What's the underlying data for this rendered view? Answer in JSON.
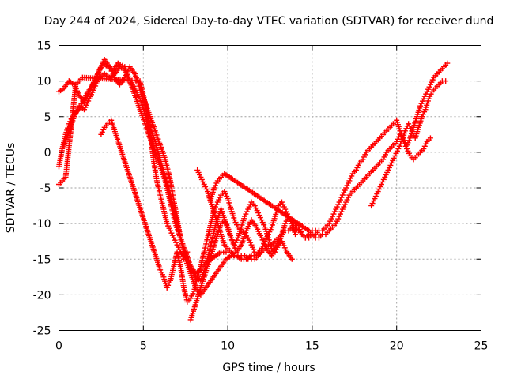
{
  "chart_data": {
    "type": "scatter",
    "title": "Day 244 of 2024, Sidereal Day-to-day VTEC variation (SDTVAR) for receiver dund",
    "xlabel": "GPS time / hours",
    "ylabel": "SDTVAR / TECUs",
    "xlim": [
      0,
      25
    ],
    "ylim": [
      -25,
      15
    ],
    "x_ticks": [
      0,
      5,
      10,
      15,
      20,
      25
    ],
    "y_ticks": [
      -25,
      -20,
      -15,
      -10,
      -5,
      0,
      5,
      10,
      15
    ],
    "grid": true,
    "marker": "plus",
    "color": "#ff0000",
    "series": [
      {
        "x": [
          0.0,
          0.2,
          0.4,
          0.6,
          0.8,
          1.0,
          1.3,
          1.6,
          2.0,
          2.3,
          2.6,
          2.9,
          3.2,
          3.5,
          3.9,
          4.2,
          4.5,
          4.8,
          5.1,
          5.4,
          5.7,
          6.0,
          6.3,
          6.6,
          6.9,
          7.2,
          7.5,
          7.8,
          8.1,
          8.4,
          8.7,
          9.0,
          9.3,
          9.6,
          9.9
        ],
        "y": [
          -2.0,
          0.5,
          2.5,
          4.0,
          5.0,
          5.5,
          6.5,
          8.0,
          9.5,
          11.0,
          12.5,
          12.0,
          11.5,
          12.5,
          12.0,
          10.0,
          8.0,
          6.0,
          4.0,
          2.0,
          0.0,
          -2.0,
          -4.0,
          -7.0,
          -10.0,
          -12.0,
          -14.0,
          -16.0,
          -17.0,
          -16.5,
          -15.5,
          -15.0,
          -14.5,
          -14.0,
          -14.0
        ]
      },
      {
        "x": [
          0.0,
          0.3,
          0.6,
          0.9,
          1.2,
          1.5,
          1.8,
          2.1,
          2.4,
          2.7,
          3.0,
          3.3,
          3.6,
          3.9,
          4.2,
          4.5,
          4.8,
          5.1,
          5.4,
          5.7,
          6.0,
          6.3,
          6.6,
          6.9,
          7.2,
          7.5,
          7.8,
          8.1,
          8.4,
          8.7,
          9.0,
          9.3,
          9.6,
          9.9,
          10.2,
          10.5,
          10.8,
          11.1,
          11.4,
          11.7,
          12.0
        ],
        "y": [
          8.5,
          9.0,
          10.0,
          9.5,
          8.0,
          7.0,
          8.5,
          10.0,
          11.5,
          13.0,
          12.0,
          10.5,
          9.5,
          10.5,
          12.0,
          11.0,
          9.0,
          7.0,
          5.0,
          3.0,
          1.0,
          -1.0,
          -4.0,
          -8.0,
          -12.0,
          -15.0,
          -17.0,
          -19.0,
          -20.0,
          -19.0,
          -18.0,
          -17.0,
          -16.0,
          -15.0,
          -14.5,
          -14.5,
          -15.0,
          -15.0,
          -14.5,
          -14.5,
          -14.0
        ]
      },
      {
        "x": [
          0.3,
          0.6,
          0.9,
          1.2,
          1.5,
          1.8,
          2.1,
          2.4,
          2.7,
          3.0,
          3.3,
          3.6,
          3.9,
          4.2,
          4.5,
          4.8,
          5.1,
          5.4,
          5.7,
          6.0,
          6.3,
          6.6,
          6.9,
          7.2,
          7.5,
          7.8,
          8.1,
          8.4,
          8.7,
          9.0,
          9.3,
          9.6,
          9.9,
          10.2,
          10.5,
          10.8,
          11.1,
          11.4,
          11.7,
          12.0,
          12.3,
          12.6,
          12.9,
          13.2,
          13.5,
          13.8
        ],
        "y": [
          1.0,
          3.0,
          5.0,
          6.5,
          6.0,
          7.5,
          9.0,
          10.5,
          11.0,
          10.5,
          11.0,
          12.0,
          11.5,
          10.0,
          9.0,
          7.5,
          5.5,
          3.5,
          1.5,
          -1.0,
          -3.5,
          -6.0,
          -9.0,
          -12.0,
          -14.5,
          -16.0,
          -17.5,
          -18.0,
          -16.0,
          -13.0,
          -10.0,
          -8.0,
          -10.0,
          -12.0,
          -14.0,
          -13.0,
          -11.0,
          -9.5,
          -10.5,
          -12.0,
          -13.5,
          -14.5,
          -13.0,
          -12.5,
          -14.0,
          -15.0
        ]
      },
      {
        "x": [
          2.5,
          2.7,
          2.9,
          3.1,
          6.0,
          6.2,
          6.4,
          6.6,
          6.8,
          7.0,
          7.2,
          7.4,
          7.6,
          7.8,
          8.0,
          8.2,
          8.4,
          8.6,
          8.8,
          9.0,
          9.2,
          9.4,
          9.6,
          9.8,
          10.0,
          10.2,
          10.4,
          10.6,
          10.8,
          11.0,
          11.2,
          11.4,
          11.6,
          11.8,
          12.0,
          12.2,
          12.4,
          12.6,
          12.8,
          13.0,
          13.2,
          13.4,
          13.6,
          13.8,
          14.0,
          14.2,
          14.4,
          14.6,
          14.8,
          15.0,
          15.2
        ],
        "y": [
          2.5,
          3.5,
          4.0,
          4.5,
          -16.5,
          -17.5,
          -19.0,
          -18.0,
          -16.0,
          -14.0,
          -16.0,
          -19.0,
          -21.0,
          -20.5,
          -19.5,
          -17.5,
          -16.0,
          -14.0,
          -12.0,
          -10.0,
          -8.0,
          -7.0,
          -6.0,
          -5.5,
          -6.5,
          -8.0,
          -9.5,
          -10.5,
          -11.0,
          -11.5,
          -12.0,
          -13.0,
          -14.0,
          -14.0,
          -13.5,
          -12.5,
          -11.5,
          -10.5,
          -9.0,
          -7.5,
          -7.0,
          -8.0,
          -9.0,
          -10.0,
          -10.5,
          -11.0,
          -11.5,
          -12.0,
          -11.5,
          -11.0,
          -11.0
        ]
      },
      {
        "x": [
          7.8,
          8.0,
          8.2,
          8.4,
          8.6,
          8.8,
          9.0,
          9.2,
          9.4,
          9.6,
          9.8,
          10.0,
          10.2,
          10.4,
          10.6,
          10.8,
          11.0,
          11.2,
          11.4,
          11.6,
          11.8,
          12.0,
          12.2,
          12.4,
          12.6,
          12.8,
          13.0,
          13.2,
          13.4,
          13.6,
          13.8,
          14.0
        ],
        "y": [
          -23.5,
          -22.0,
          -20.5,
          -19.0,
          -17.5,
          -16.0,
          -14.5,
          -13.0,
          -11.5,
          -10.0,
          -9.5,
          -10.5,
          -12.0,
          -13.0,
          -12.0,
          -10.5,
          -9.0,
          -8.0,
          -7.0,
          -7.5,
          -8.5,
          -9.5,
          -10.5,
          -12.0,
          -13.5,
          -14.0,
          -13.0,
          -11.5,
          -10.0,
          -9.0,
          -10.0,
          -11.5
        ]
      },
      {
        "x": [
          8.2,
          8.4,
          8.6,
          8.8,
          9.0,
          9.2,
          9.4,
          9.6,
          9.8,
          10.0,
          10.2,
          10.4,
          10.6,
          10.8,
          11.0,
          11.2,
          11.4,
          11.6,
          11.8,
          12.0,
          12.2,
          12.4,
          12.6,
          12.8,
          13.0,
          13.2,
          13.4,
          13.6,
          13.8,
          14.0,
          14.2,
          14.4,
          14.6,
          14.8,
          15.0,
          15.2,
          15.4,
          15.6,
          15.8,
          16.0,
          16.2,
          16.4,
          16.6,
          16.8,
          17.0,
          17.2,
          17.4,
          17.6,
          17.8,
          18.0,
          18.2,
          18.4,
          18.6,
          18.8,
          19.0,
          19.2,
          19.4,
          19.6,
          19.8,
          20.0,
          20.2,
          20.4,
          20.6,
          20.8,
          21.0,
          21.2,
          21.4,
          21.6,
          21.8,
          22.0,
          22.2,
          22.4,
          22.6,
          22.8,
          23.0
        ],
        "y": [
          -2.5,
          -3.5,
          -4.5,
          -5.5,
          -7.0,
          -8.5,
          -10.0,
          -11.5,
          -13.0,
          -13.5,
          -14.0,
          -14.5,
          -14.5,
          -14.5,
          -14.5,
          -15.0,
          -15.0,
          -15.0,
          -14.5,
          -14.0,
          -13.5,
          -13.0,
          -13.0,
          -12.5,
          -12.0,
          -11.5,
          -11.0,
          -11.0,
          -10.5,
          -10.0,
          -10.5,
          -11.5,
          -12.0,
          -12.0,
          -11.5,
          -11.5,
          -11.0,
          -11.0,
          -10.5,
          -10.0,
          -9.0,
          -8.0,
          -7.0,
          -6.0,
          -5.0,
          -4.0,
          -3.0,
          -2.5,
          -1.5,
          -1.0,
          0.0,
          0.5,
          1.0,
          1.5,
          2.0,
          2.5,
          3.0,
          3.5,
          4.0,
          4.5,
          3.0,
          2.0,
          1.0,
          2.0,
          3.5,
          5.0,
          6.5,
          7.5,
          8.5,
          9.5,
          10.5,
          11.0,
          11.5,
          12.0,
          12.5
        ]
      },
      {
        "x": [
          9.0,
          9.2,
          9.4,
          9.6,
          9.8,
          14.8,
          15.0,
          15.2,
          15.4,
          15.6,
          15.8,
          16.0,
          16.2,
          16.4,
          16.6,
          16.8,
          17.0,
          17.2,
          17.4,
          17.6,
          17.8,
          18.0,
          18.2,
          18.4,
          18.6,
          18.8,
          19.0,
          19.2,
          19.4,
          19.6,
          19.8,
          20.0,
          20.2,
          20.4,
          20.6,
          20.8,
          21.0,
          21.2,
          21.4,
          21.6,
          21.8,
          22.0
        ],
        "y": [
          -6.5,
          -5.0,
          -4.0,
          -3.5,
          -3.0,
          -11.0,
          -11.5,
          -12.0,
          -12.0,
          -11.5,
          -11.5,
          -11.0,
          -10.5,
          -10.0,
          -9.0,
          -8.0,
          -7.0,
          -6.0,
          -5.5,
          -5.0,
          -4.5,
          -4.0,
          -3.5,
          -3.0,
          -2.5,
          -2.0,
          -1.5,
          -1.0,
          0.0,
          0.5,
          1.0,
          1.5,
          2.5,
          1.5,
          0.5,
          -0.5,
          -1.0,
          -0.5,
          0.0,
          0.5,
          1.5,
          2.0
        ]
      },
      {
        "x": [
          18.5,
          18.7,
          18.9,
          19.1,
          19.3,
          19.5,
          19.7,
          19.9,
          20.1,
          20.3,
          20.5,
          20.7,
          20.9,
          21.1,
          21.3,
          21.5,
          21.7,
          21.9,
          22.1,
          22.3,
          22.5,
          22.7,
          22.9
        ],
        "y": [
          -7.5,
          -6.5,
          -5.5,
          -4.5,
          -3.5,
          -2.5,
          -1.5,
          -0.5,
          0.5,
          1.5,
          3.0,
          4.0,
          3.0,
          2.0,
          3.5,
          5.0,
          6.0,
          7.5,
          8.5,
          9.0,
          9.5,
          10.0,
          10.0
        ]
      },
      {
        "x": [
          0.0,
          0.2,
          0.4,
          1.0,
          1.2,
          1.4,
          4.8,
          5.0,
          5.2,
          5.4,
          5.6,
          5.8,
          6.0,
          6.2,
          6.4,
          6.6,
          6.8,
          7.0,
          7.2,
          7.4,
          7.6
        ],
        "y": [
          -4.5,
          -4.0,
          -3.5,
          9.5,
          10.0,
          10.5,
          10.0,
          8.0,
          6.0,
          3.0,
          -1.0,
          -4.0,
          -6.0,
          -8.0,
          -10.0,
          -11.0,
          -12.0,
          -13.0,
          -14.0,
          -15.0,
          -14.0
        ]
      }
    ]
  }
}
